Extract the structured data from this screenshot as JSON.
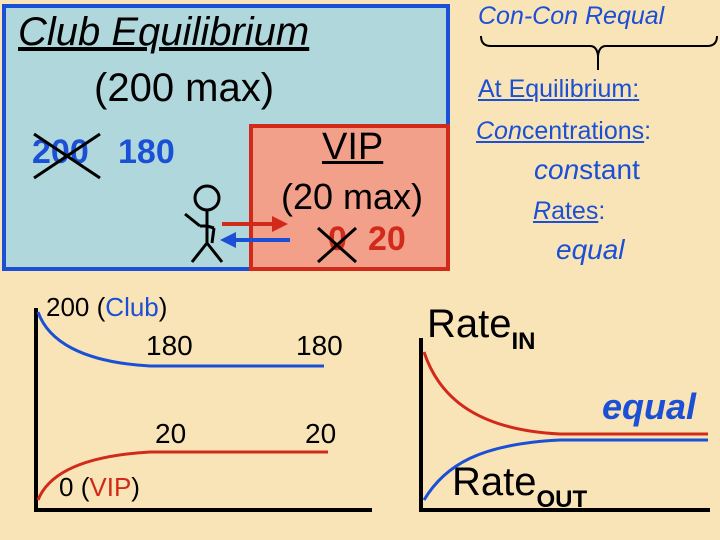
{
  "club": {
    "title": "Club Equilibrium",
    "max": "(200 max)",
    "old_count": "200",
    "new_count": "180"
  },
  "vip": {
    "title": "VIP",
    "max": "(20 max)",
    "old_count": "0",
    "new_count": "20"
  },
  "requal": {
    "heading": "Con-Con Requal",
    "at_equilibrium": "At Equilibrium",
    "colon": ":",
    "conc_prefix": "Con",
    "conc_suffix": "centrations",
    "conc_value_prefix": "con",
    "conc_value_suffix": "stant",
    "rate_prefix": "R",
    "rate_suffix": "ates",
    "rate_value": "equal"
  },
  "graph_concentration": {
    "club_start": "200",
    "club_name": "Club",
    "vip_start": "0",
    "vip_name": "VIP",
    "club_eq_a": "180",
    "club_eq_b": "180",
    "vip_eq_a": "20",
    "vip_eq_b": "20",
    "paren_open": "(",
    "paren_close": ")"
  },
  "graph_rates": {
    "rate_word": "Rate",
    "in_sub": "IN",
    "out_sub": "OUT",
    "equal_label": "equal"
  },
  "colors": {
    "club_fill": "#b0d8dc",
    "club_border": "#1a4fd6",
    "vip_fill": "#f2a08a",
    "vip_border": "#d22a1a",
    "background": "#f9e4b7"
  }
}
